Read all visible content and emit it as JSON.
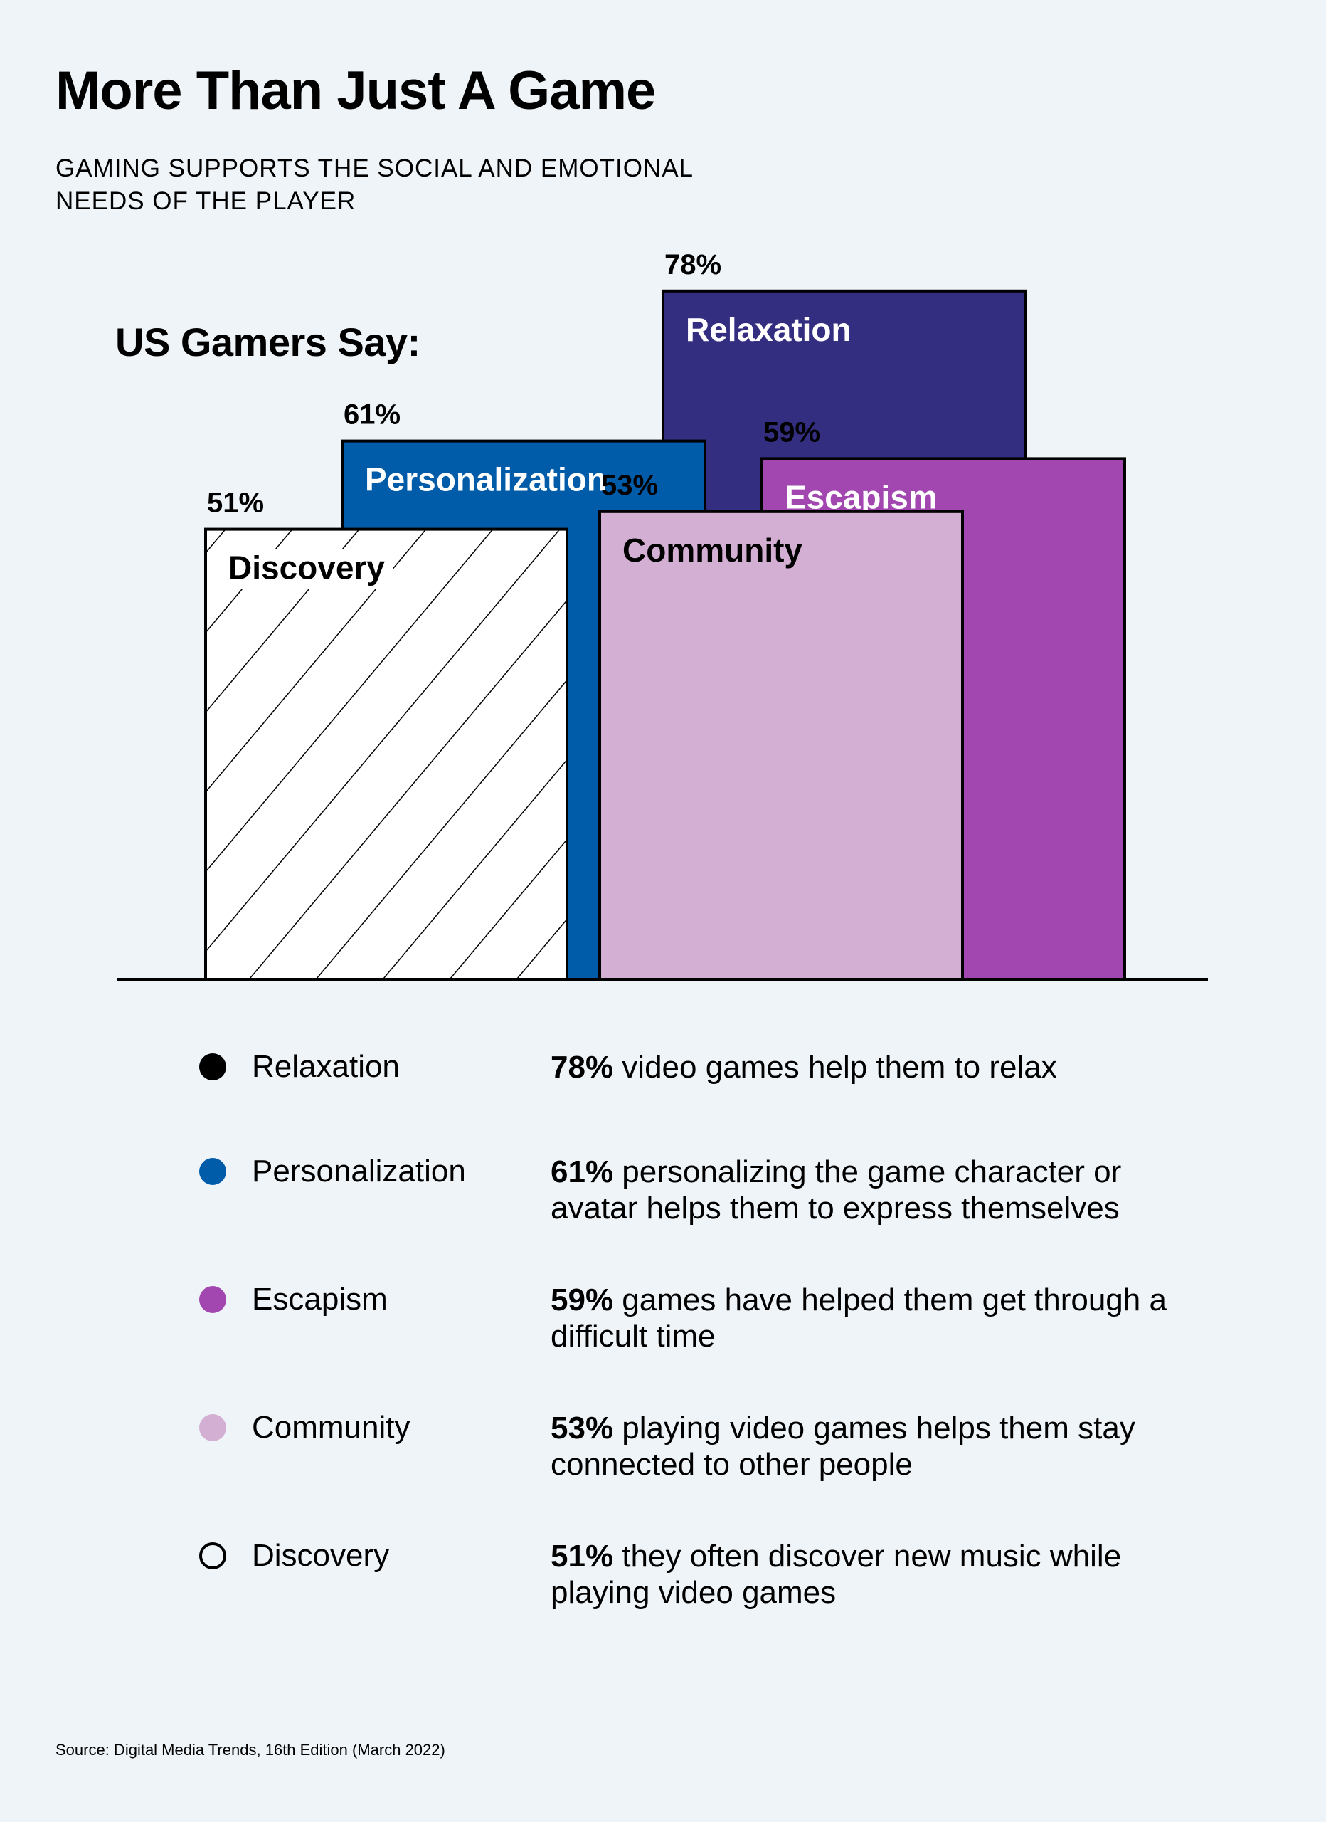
{
  "header": {
    "title": "More Than Just A Game",
    "subtitle": "GAMING SUPPORTS THE SOCIAL AND EMOTIONAL NEEDS OF THE PLAYER",
    "chart_heading": "US Gamers Say:"
  },
  "chart_data": {
    "type": "bar",
    "title": "US Gamers Say:",
    "categories": [
      "Relaxation",
      "Personalization",
      "Escapism",
      "Community",
      "Discovery"
    ],
    "values": [
      78,
      61,
      59,
      53,
      51
    ],
    "value_labels": [
      "78%",
      "61%",
      "59%",
      "53%",
      "51%"
    ],
    "unit": "%",
    "colors": {
      "Relaxation": "#332e80",
      "Personalization": "#005ba8",
      "Escapism": "#a247b0",
      "Community": "#d4afd4",
      "Discovery": "#ffffff"
    },
    "patterns": {
      "Discovery": "diagonal-hatch"
    },
    "layout": "overlapping-blocks",
    "grid": false
  },
  "legend": [
    {
      "label": "Relaxation",
      "color": "#000000",
      "dot_style": "filled",
      "percent": "78%",
      "text": "video games help them to relax"
    },
    {
      "label": "Personalization",
      "color": "#005ba8",
      "dot_style": "filled",
      "percent": "61%",
      "text": "personalizing the game character or avatar helps them to express themselves"
    },
    {
      "label": "Escapism",
      "color": "#a247b0",
      "dot_style": "filled",
      "percent": "59%",
      "text": "games have helped them get through a difficult time"
    },
    {
      "label": "Community",
      "color": "#d4afd4",
      "dot_style": "filled",
      "percent": "53%",
      "text": "playing video games helps them stay connected to other people"
    },
    {
      "label": "Discovery",
      "color": "#000000",
      "dot_style": "outline",
      "percent": "51%",
      "text": "they often discover new music while playing video games"
    }
  ],
  "footer": {
    "source": "Source: Digital Media Trends, 16th Edition (March 2022)"
  }
}
